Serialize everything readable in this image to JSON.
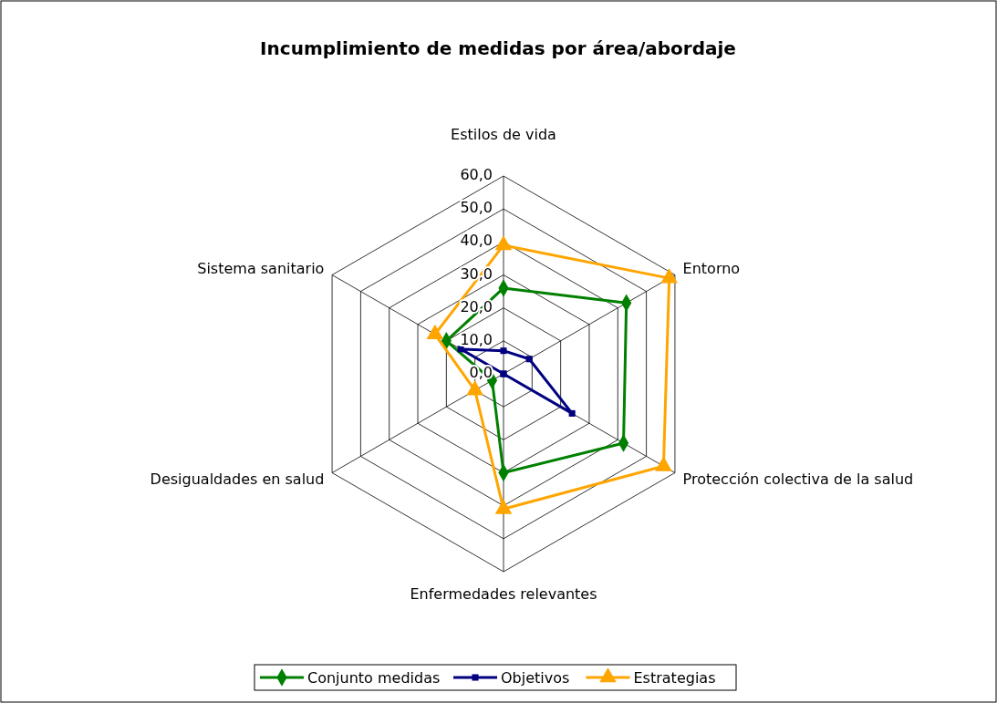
{
  "chart_data": {
    "type": "radar",
    "title": "Incumplimiento de medidas por área/abordaje",
    "categories": [
      "Estilos de vida",
      "Entorno",
      "Protección colectiva de la salud",
      "Enfermedades relevantes",
      "Desigualdades en salud",
      "Sistema sanitario"
    ],
    "series": [
      {
        "name": "Conjunto medidas",
        "color": "#008000",
        "marker": "diamond",
        "values": [
          26,
          43,
          42,
          30,
          4,
          20
        ]
      },
      {
        "name": "Objetivos",
        "color": "#000080",
        "marker": "square",
        "values": [
          7,
          9,
          24,
          0,
          0,
          15
        ]
      },
      {
        "name": "Estrategias",
        "color": "#ffa500",
        "marker": "triangle",
        "values": [
          39,
          58,
          56,
          41,
          10,
          24
        ]
      }
    ],
    "ylim": [
      0,
      60
    ],
    "yticks": [
      {
        "value": 0,
        "label": "0,0"
      },
      {
        "value": 10,
        "label": "10,0"
      },
      {
        "value": 20,
        "label": "20,0"
      },
      {
        "value": 30,
        "label": "30,0"
      },
      {
        "value": 40,
        "label": "40,0"
      },
      {
        "value": 50,
        "label": "50,0"
      },
      {
        "value": 60,
        "label": "60,0"
      }
    ],
    "grid": true,
    "legend": "bottom",
    "line_style": "solid"
  }
}
